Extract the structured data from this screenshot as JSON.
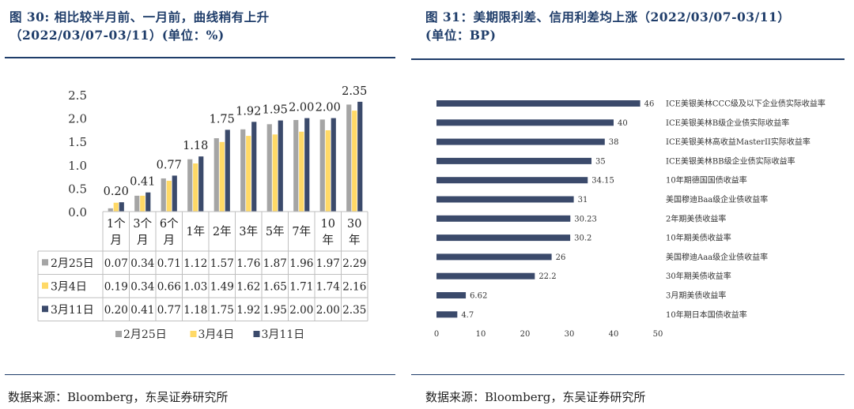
{
  "colors": {
    "accent": "#1f3d6a",
    "gray": "#a5a5a5",
    "yellow": "#ffd966",
    "navy": "#3b4a6b"
  },
  "left": {
    "title_line1": "图 30: 相比较半月前、一月前，曲线稍有上升",
    "title_line2": "（2022/03/07-03/11）(单位：%)",
    "source": "数据来源：Bloomberg，东吴证券研究所"
  },
  "right": {
    "title_line1": "图 31：美期限利差、信用利差均上涨（2022/03/07-03/11）",
    "title_line2": "(单位：BP)",
    "source": "数据来源：Bloomberg，东吴证券研究所"
  },
  "chart_data": [
    {
      "type": "bar",
      "title": "相比较半月前、一月前，曲线稍有上升",
      "categories": [
        [
          "1个",
          "月"
        ],
        [
          "3个",
          "月"
        ],
        [
          "6个",
          "月"
        ],
        [
          "1年"
        ],
        [
          "2年"
        ],
        [
          "3年"
        ],
        [
          "5年"
        ],
        [
          "7年"
        ],
        [
          "10",
          "年"
        ],
        [
          "30",
          "年"
        ]
      ],
      "series": [
        {
          "name": "2月25日",
          "color": "#a5a5a5",
          "values": [
            0.07,
            0.34,
            0.71,
            1.12,
            1.57,
            1.76,
            1.87,
            1.96,
            1.97,
            2.29
          ]
        },
        {
          "name": "3月4日",
          "color": "#ffd966",
          "values": [
            0.19,
            0.34,
            0.66,
            1.03,
            1.49,
            1.62,
            1.65,
            1.71,
            1.74,
            2.16
          ]
        },
        {
          "name": "3月11日",
          "color": "#3b4a6b",
          "values": [
            0.2,
            0.41,
            0.77,
            1.18,
            1.75,
            1.92,
            1.95,
            2.0,
            2.0,
            2.35
          ]
        }
      ],
      "data_labels": [
        "0.20",
        "0.41",
        "0.77",
        "1.18",
        "1.75",
        "1.92",
        "1.95",
        "2.00",
        "2.00",
        "2.35"
      ],
      "table": {
        "rows": [
          {
            "label": "2月25日",
            "values": [
              "0.07",
              "0.34",
              "0.71",
              "1.12",
              "1.57",
              "1.76",
              "1.87",
              "1.96",
              "1.97",
              "2.29"
            ]
          },
          {
            "label": "3月4日",
            "values": [
              "0.19",
              "0.34",
              "0.66",
              "1.03",
              "1.49",
              "1.62",
              "1.65",
              "1.71",
              "1.74",
              "2.16"
            ]
          },
          {
            "label": "3月11日",
            "values": [
              "0.20",
              "0.41",
              "0.77",
              "1.18",
              "1.75",
              "1.92",
              "1.95",
              "2.00",
              "2.00",
              "2.35"
            ]
          }
        ]
      },
      "yticks": [
        "0.0",
        "0.5",
        "1.0",
        "1.5",
        "2.0",
        "2.5"
      ],
      "ylim": [
        0,
        2.5
      ],
      "legend": [
        "2月25日",
        "3月4日",
        "3月11日"
      ],
      "legend_position": "bottom"
    },
    {
      "type": "bar",
      "orientation": "horizontal",
      "title": "美期限利差、信用利差均上涨",
      "categories": [
        "ICE美银美林CCC级及以下企业债实际收益率",
        "ICE美银美林B级企业债实际收益率",
        "ICE美银美林高收益MasterII实际收益率",
        "ICE美银美林BB级企业债实际收益率",
        "10年期德国国债收益率",
        "美国穆迪Baa级企业债收益率",
        "2年期美债收益率",
        "10年期美债收益率",
        "美国穆迪Aaa级企业债收益率",
        "30年期美债收益率",
        "3月期美债收益率",
        "10年期日本国债收益率"
      ],
      "values": [
        46,
        40,
        38,
        35,
        34.15,
        31,
        30.23,
        30.2,
        26,
        22.2,
        6.62,
        4.7
      ],
      "value_labels": [
        "46",
        "40",
        "38",
        "35",
        "34.15",
        "31",
        "30.23",
        "30.2",
        "26",
        "22.2",
        "6.62",
        "4.7"
      ],
      "xticks": [
        "0",
        "10",
        "20",
        "30",
        "40",
        "50"
      ],
      "xlim": [
        0,
        50
      ],
      "color": "#3b4a6b"
    }
  ]
}
